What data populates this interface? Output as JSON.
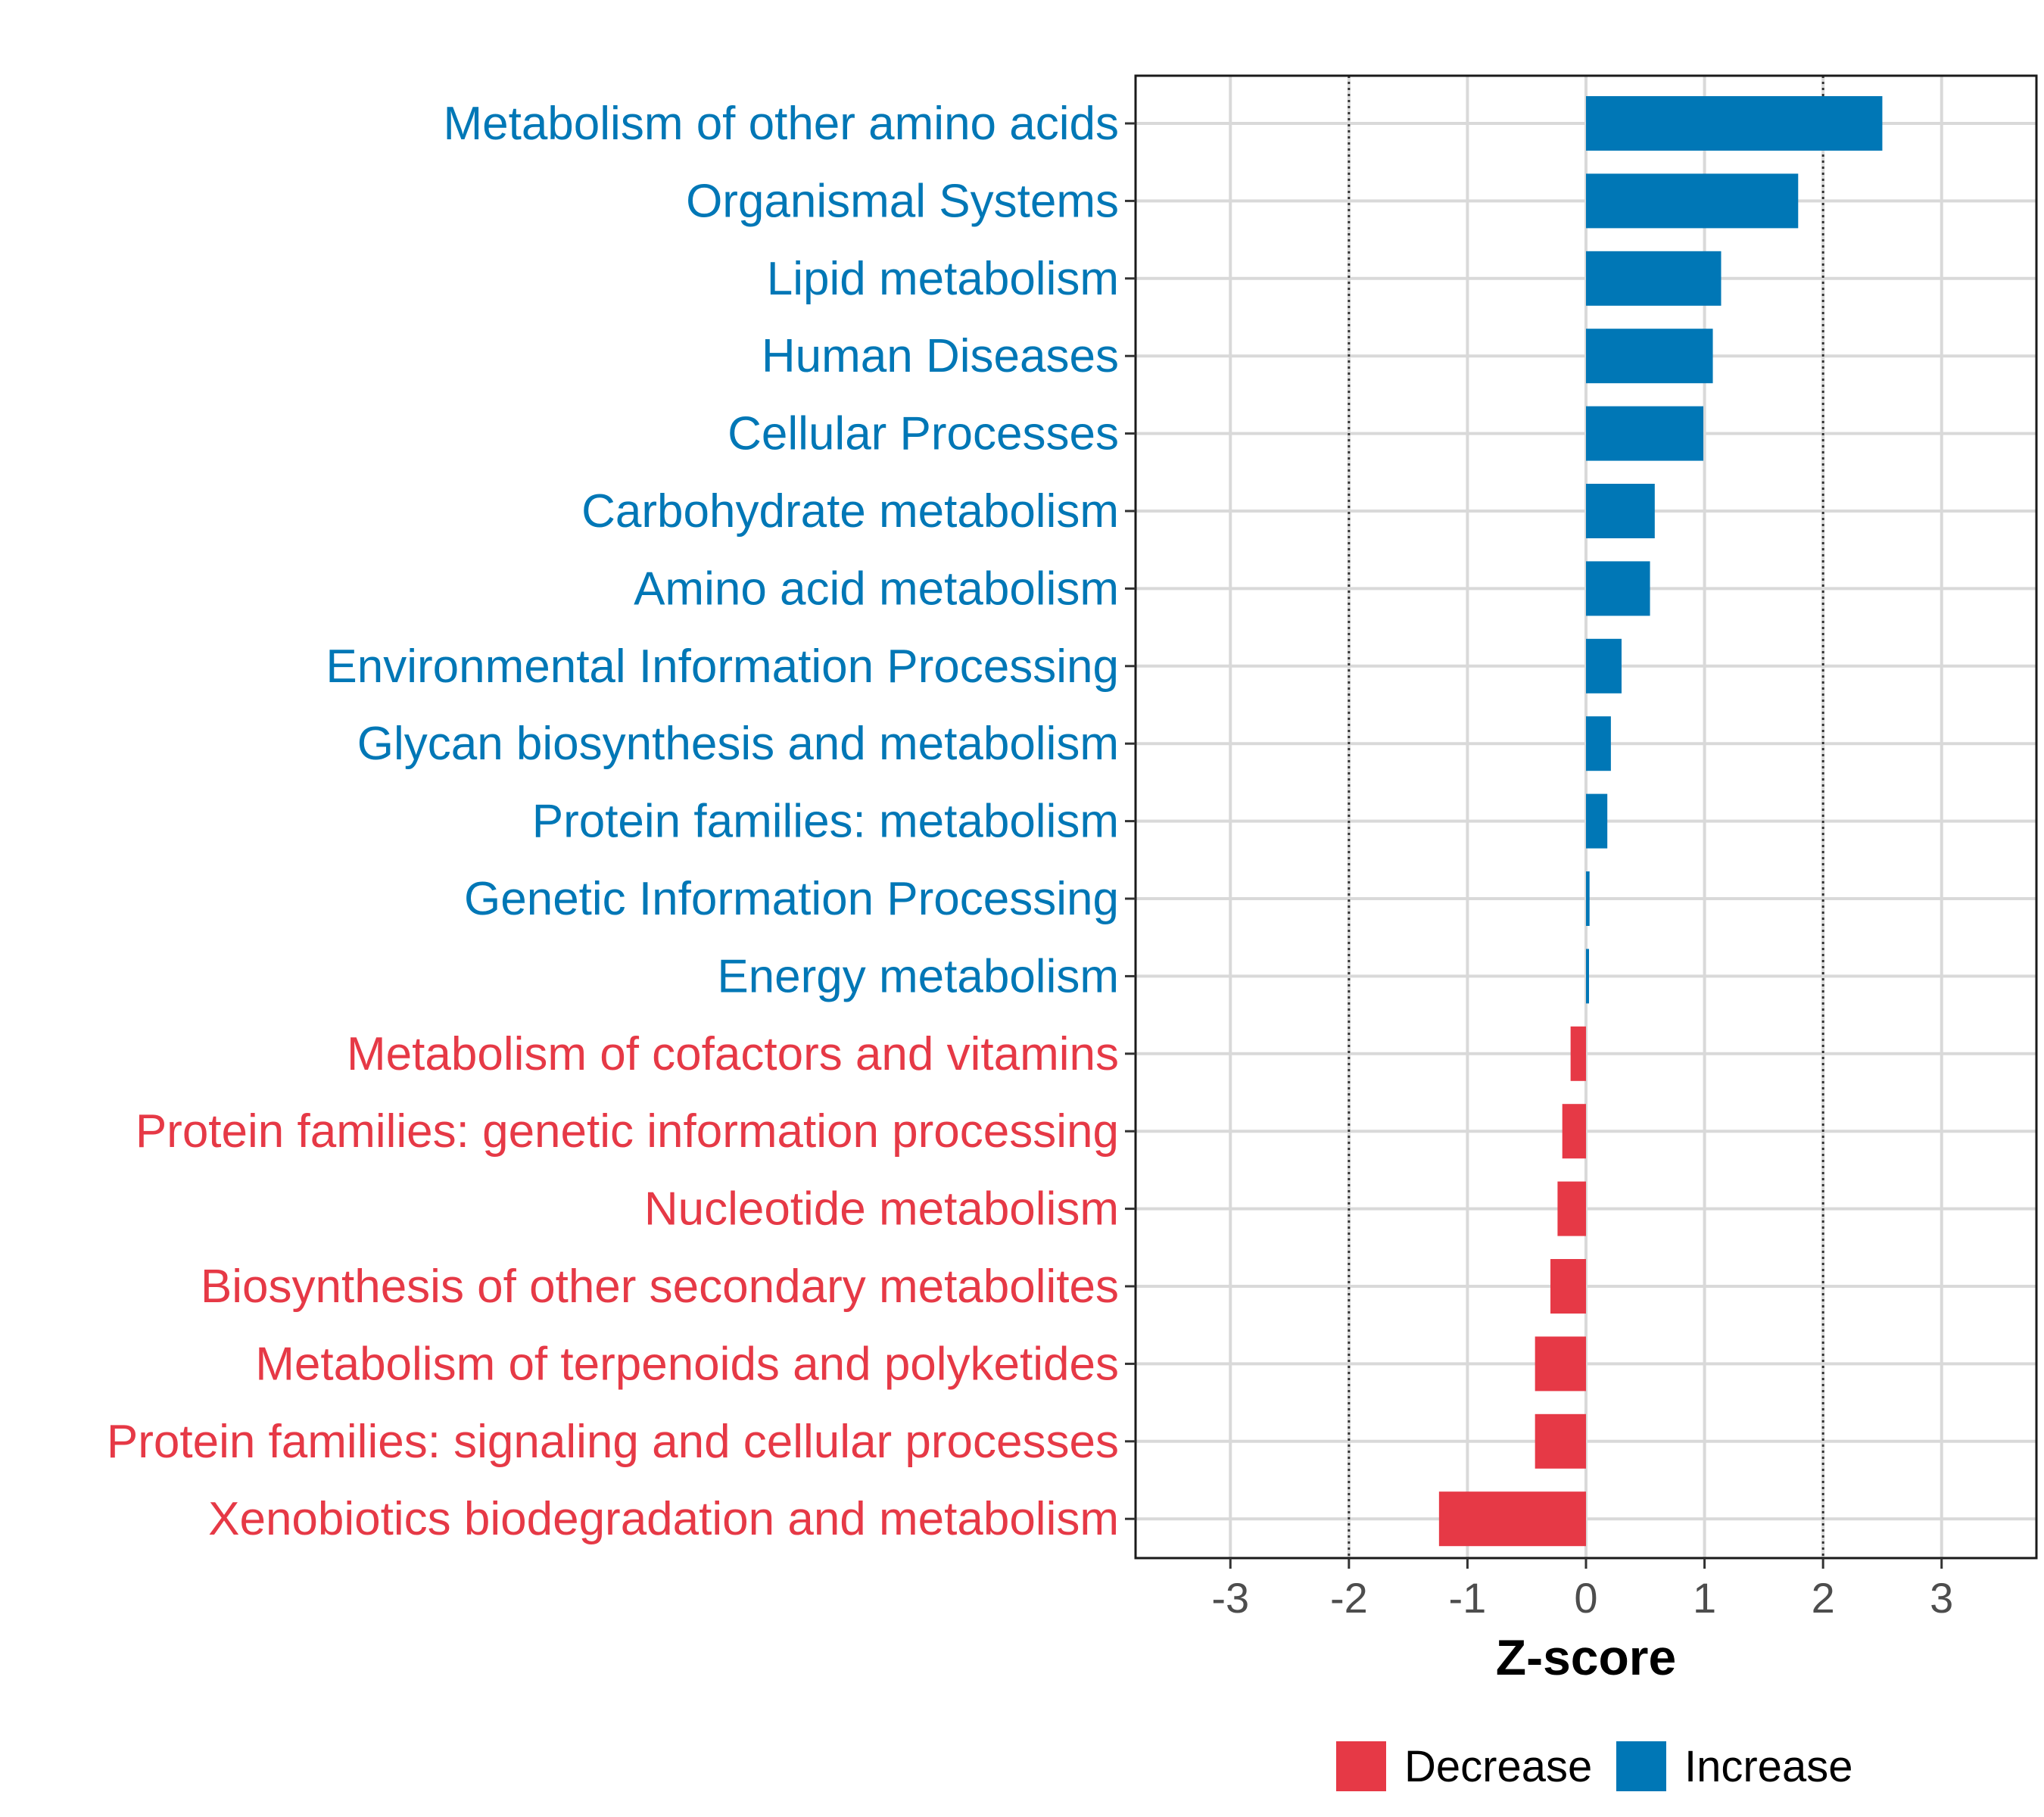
{
  "chart_data": {
    "type": "bar",
    "orientation": "horizontal",
    "title": "",
    "xlabel": "Z-score",
    "ylabel": "",
    "xlim": [
      -3.8,
      3.8
    ],
    "xticks": [
      -3,
      -2,
      -1,
      0,
      1,
      2,
      3
    ],
    "reference_lines": [
      -2,
      2
    ],
    "grid": true,
    "legend_position": "bottom",
    "colors": {
      "Decrease": "#e63946",
      "Increase": "#0077b6"
    },
    "legend": [
      {
        "key": "Decrease",
        "label": "Decrease"
      },
      {
        "key": "Increase",
        "label": "Increase"
      }
    ],
    "categories": [
      "Metabolism of other amino acids",
      "Organismal Systems",
      "Lipid metabolism",
      "Human Diseases",
      "Cellular Processes",
      "Carbohydrate metabolism",
      "Amino acid metabolism",
      "Environmental Information Processing",
      "Glycan biosynthesis and metabolism",
      "Protein families: metabolism",
      "Genetic Information Processing",
      "Energy metabolism",
      "Metabolism of cofactors and vitamins",
      "Protein families: genetic information processing",
      "Nucleotide metabolism",
      "Biosynthesis of other secondary metabolites",
      "Metabolism of terpenoids and polyketides",
      "Protein families: signaling and cellular processes",
      "Xenobiotics biodegradation and metabolism"
    ],
    "values": [
      2.5,
      1.79,
      1.14,
      1.07,
      0.99,
      0.58,
      0.54,
      0.3,
      0.21,
      0.18,
      0.03,
      0.02,
      -0.13,
      -0.2,
      -0.24,
      -0.3,
      -0.43,
      -0.43,
      -1.24
    ],
    "groups": [
      "Increase",
      "Increase",
      "Increase",
      "Increase",
      "Increase",
      "Increase",
      "Increase",
      "Increase",
      "Increase",
      "Increase",
      "Increase",
      "Increase",
      "Decrease",
      "Decrease",
      "Decrease",
      "Decrease",
      "Decrease",
      "Decrease",
      "Decrease"
    ]
  }
}
